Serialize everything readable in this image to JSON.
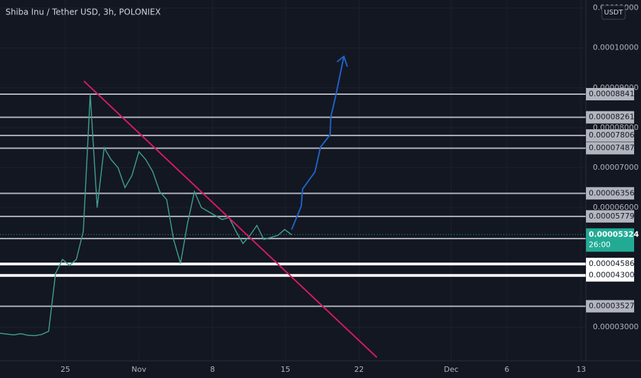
{
  "chart_data": {
    "type": "line",
    "title": "Shiba Inu / Tether USD, 3h, POLONIEX",
    "currency": "USDT",
    "color": "#3f9c8f",
    "values": [
      2.85e-05,
      2.83e-05,
      2.81e-05,
      2.84e-05,
      2.8e-05,
      2.79e-05,
      2.82e-05,
      2.9e-05,
      4.35e-05,
      4.7e-05,
      4.55e-05,
      4.7e-05,
      5.4e-05,
      8.84e-05,
      6e-05,
      7.5e-05,
      7.2e-05,
      7e-05,
      6.5e-05,
      6.8e-05,
      7.4e-05,
      7.2e-05,
      6.9e-05,
      6.4e-05,
      6.2e-05,
      5.2e-05,
      4.6e-05,
      5.6e-05,
      6.4e-05,
      6e-05,
      5.9e-05,
      5.8e-05,
      5.7e-05,
      5.75e-05,
      5.4e-05,
      5.1e-05,
      5.3e-05,
      5.55e-05,
      5.2e-05,
      5.25e-05,
      5.3e-05,
      5.45e-05,
      5.32e-05
    ],
    "ylim": [
      2.16e-05,
      0.000112
    ],
    "yticks": [
      {
        "value": 0.00011,
        "label": "0.00011000"
      },
      {
        "value": 0.0001,
        "label": "0.00010000"
      },
      {
        "value": 9e-05,
        "label": "0.00009000"
      },
      {
        "value": 8e-05,
        "label": "0.00008000"
      },
      {
        "value": 7e-05,
        "label": "0.00007000"
      },
      {
        "value": 6e-05,
        "label": "0.00006000"
      },
      {
        "value": 3e-05,
        "label": "0.00003000"
      }
    ],
    "grid": true,
    "x_labels": [
      "25",
      "Nov",
      "8",
      "15",
      "22",
      "Dec",
      "6",
      "13"
    ],
    "levels": [
      {
        "value": 8.841e-05,
        "color": "#b2b5be"
      },
      {
        "value": 8.261e-05,
        "color": "#b2b5be"
      },
      {
        "value": 7.806e-05,
        "color": "#b2b5be"
      },
      {
        "value": 7.487e-05,
        "color": "#b2b5be"
      },
      {
        "value": 6.356e-05,
        "color": "#b2b5be"
      },
      {
        "value": 5.779e-05,
        "color": "#b2b5be"
      },
      {
        "value": 5.222e-05,
        "color": "#b2b5be"
      },
      {
        "value": 4.586e-05,
        "color": "#ffffff"
      },
      {
        "value": 4.3e-05,
        "label": "0.00004300",
        "color": "#ffffff"
      },
      {
        "value": 3.527e-05,
        "color": "#b2b5be"
      }
    ],
    "last_price": {
      "value": 5.324e-05,
      "countdown": "26:00",
      "color": "#22ab94"
    }
  }
}
